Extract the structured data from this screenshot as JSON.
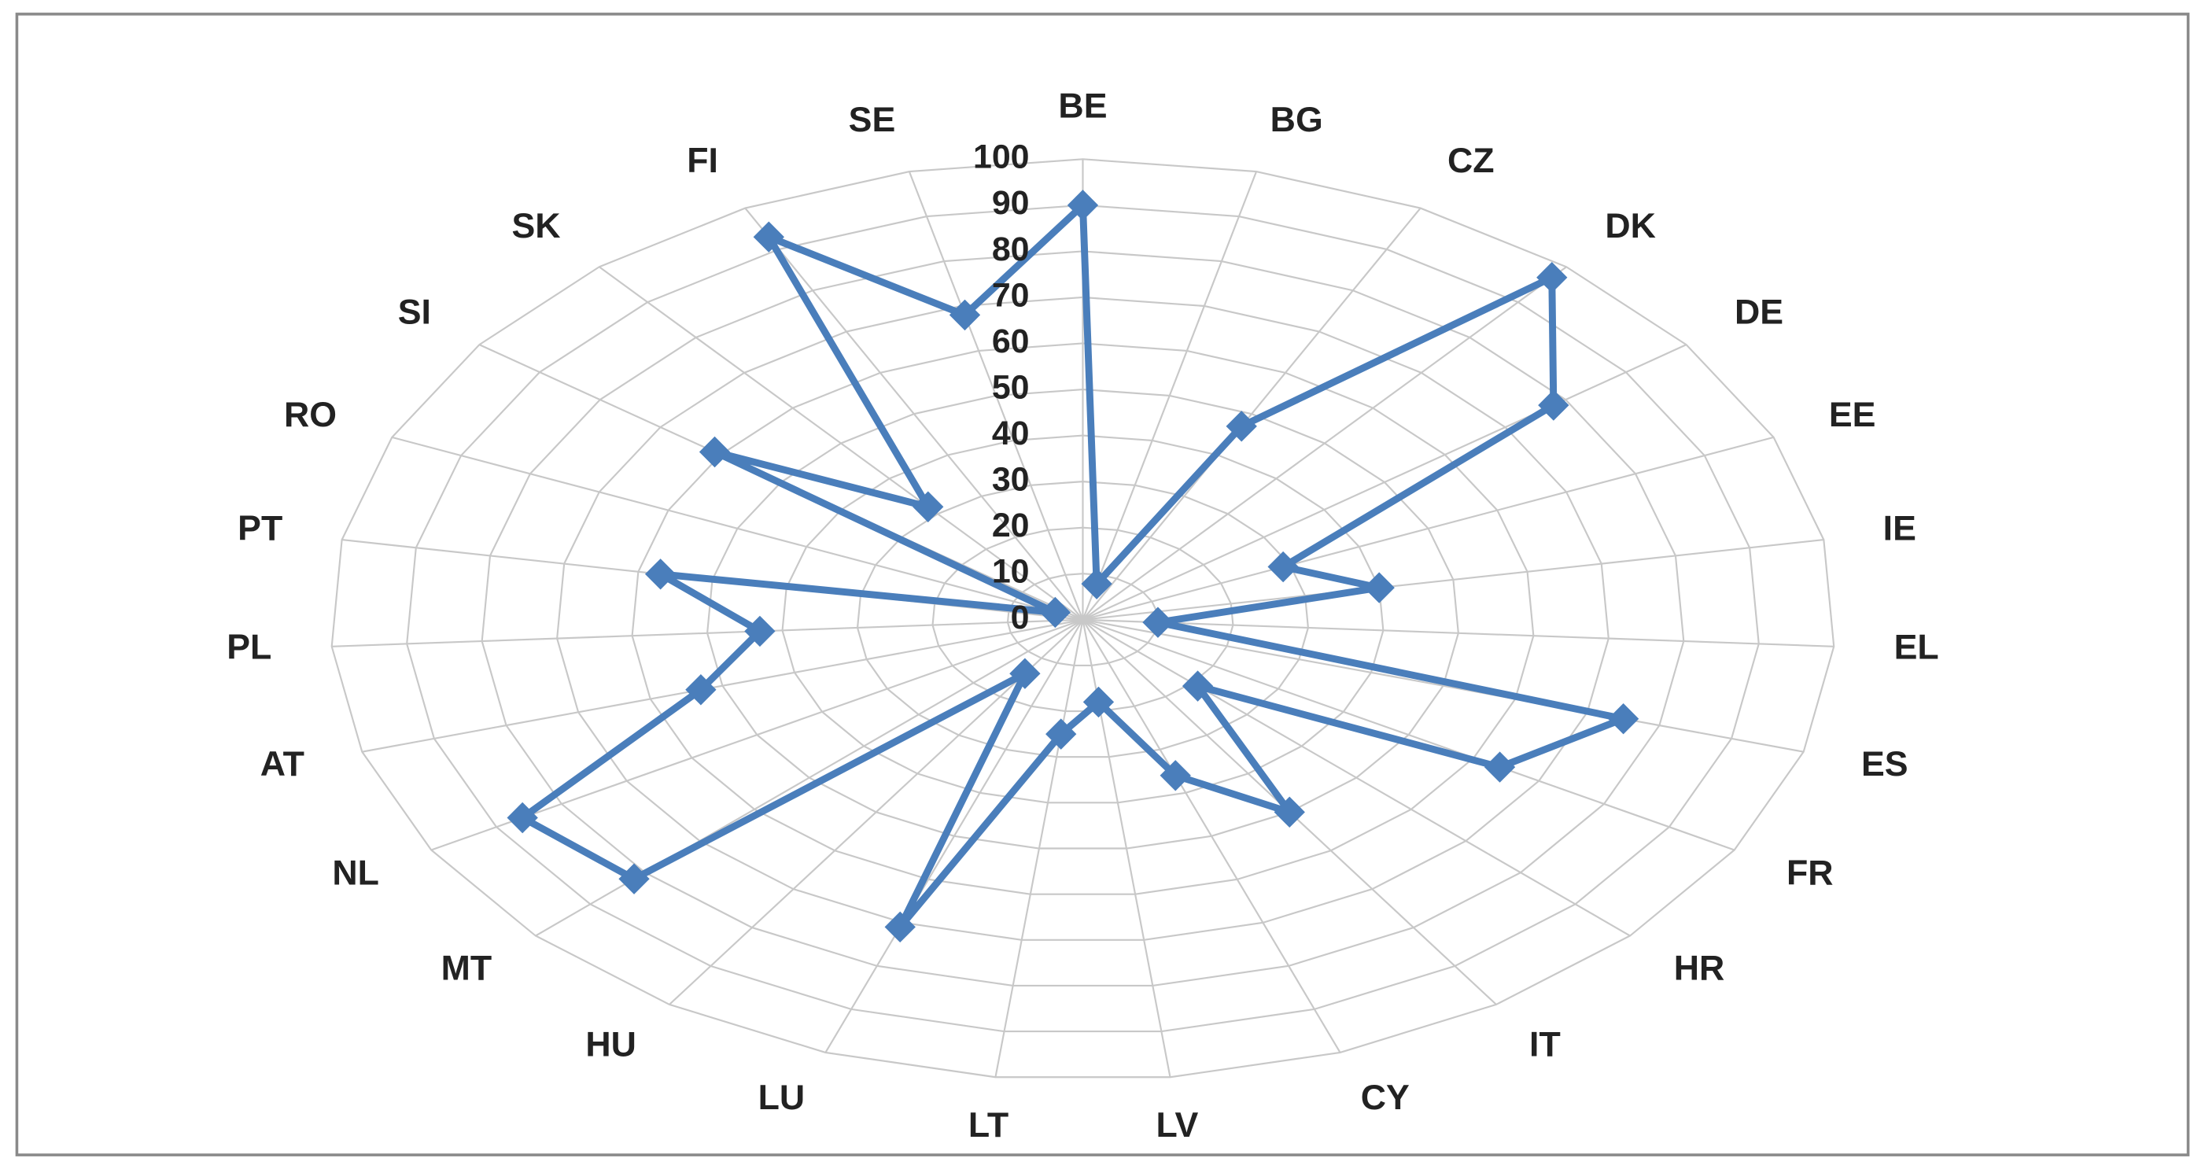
{
  "chart_data": {
    "type": "radar",
    "categories": [
      "BE",
      "BG",
      "CZ",
      "DK",
      "DE",
      "EE",
      "IE",
      "EL",
      "ES",
      "FR",
      "HR",
      "IT",
      "CY",
      "LV",
      "LT",
      "LU",
      "HU",
      "MT",
      "NL",
      "AT",
      "PL",
      "PT",
      "RO",
      "SI",
      "SK",
      "FI",
      "SE"
    ],
    "values": [
      90,
      8,
      47,
      97,
      78,
      29,
      40,
      10,
      75,
      64,
      21,
      50,
      36,
      18,
      25,
      71,
      14,
      82,
      86,
      53,
      43,
      57,
      4,
      61,
      32,
      93,
      68
    ],
    "color": "#4a7ebb",
    "rlim": [
      0,
      100
    ],
    "rticks": [
      0,
      10,
      20,
      30,
      40,
      50,
      60,
      70,
      80,
      90,
      100
    ],
    "grid": true
  }
}
